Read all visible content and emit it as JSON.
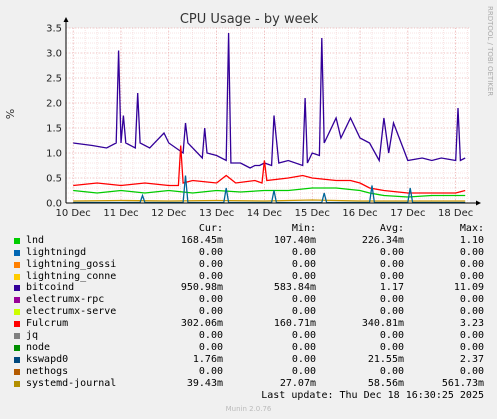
{
  "chart_data": {
    "type": "line",
    "title": "CPU Usage - by week",
    "ylabel": "%",
    "ylim": [
      0,
      3.5
    ],
    "yticks": [
      "0.0",
      "0.5",
      "1.0",
      "1.5",
      "2.0",
      "2.5",
      "3.0",
      "3.5"
    ],
    "x_categories": [
      "10 Dec",
      "11 Dec",
      "12 Dec",
      "13 Dec",
      "14 Dec",
      "15 Dec",
      "16 Dec",
      "17 Dec",
      "18 Dec"
    ],
    "x_range_days": [
      -0.15,
      8.3
    ],
    "grid": true,
    "side_label": "RRDTOOL / TOBI OETIKER",
    "series": [
      {
        "name": "bitcoind",
        "color": "#330099",
        "x": [
          0,
          0.4,
          0.7,
          0.9,
          0.95,
          1.0,
          1.05,
          1.1,
          1.3,
          1.35,
          1.4,
          1.6,
          1.9,
          2.0,
          2.3,
          2.35,
          2.4,
          2.7,
          2.75,
          2.8,
          3.0,
          3.2,
          3.25,
          3.3,
          3.5,
          3.6,
          3.7,
          3.8,
          3.9,
          4.0,
          4.15,
          4.2,
          4.3,
          4.5,
          4.8,
          4.85,
          4.9,
          5.0,
          5.15,
          5.2,
          5.25,
          5.5,
          5.6,
          5.8,
          6.0,
          6.2,
          6.4,
          6.5,
          6.6,
          6.7,
          6.9,
          7.0,
          7.3,
          7.5,
          7.7,
          8.0,
          8.05,
          8.1,
          8.2
        ],
        "y": [
          1.2,
          1.15,
          1.1,
          1.2,
          3.05,
          1.2,
          1.75,
          1.2,
          1.1,
          2.2,
          1.2,
          1.1,
          1.4,
          1.2,
          1.0,
          1.6,
          1.2,
          0.9,
          1.5,
          1.0,
          0.95,
          0.85,
          3.4,
          0.8,
          0.8,
          0.75,
          0.7,
          0.75,
          0.75,
          0.8,
          0.75,
          1.75,
          0.8,
          0.85,
          0.75,
          2.1,
          0.8,
          1.0,
          0.95,
          3.3,
          1.2,
          1.7,
          1.3,
          1.7,
          1.3,
          1.2,
          0.85,
          1.7,
          1.0,
          1.6,
          1.1,
          0.85,
          0.9,
          0.85,
          0.9,
          0.85,
          1.9,
          0.85,
          0.9
        ]
      },
      {
        "name": "Fulcrum",
        "color": "#ff0000",
        "x": [
          0,
          0.5,
          1.0,
          1.5,
          2.0,
          2.2,
          2.25,
          2.3,
          2.5,
          3.0,
          3.2,
          3.4,
          3.8,
          3.95,
          4.0,
          4.05,
          4.5,
          4.8,
          5.0,
          5.5,
          5.8,
          6.0,
          6.2,
          6.5,
          7.0,
          7.5,
          8.0,
          8.2
        ],
        "y": [
          0.35,
          0.4,
          0.35,
          0.4,
          0.35,
          0.35,
          1.15,
          0.4,
          0.45,
          0.4,
          0.55,
          0.4,
          0.45,
          0.4,
          0.85,
          0.45,
          0.5,
          0.55,
          0.5,
          0.45,
          0.45,
          0.4,
          0.3,
          0.25,
          0.2,
          0.2,
          0.2,
          0.25
        ]
      },
      {
        "name": "lnd",
        "color": "#00cc00",
        "x": [
          0,
          0.5,
          1.0,
          1.5,
          2.0,
          2.5,
          3.0,
          3.5,
          4.0,
          4.5,
          5.0,
          5.5,
          6.0,
          6.2,
          6.5,
          7.0,
          7.5,
          8.0,
          8.2
        ],
        "y": [
          0.25,
          0.2,
          0.25,
          0.2,
          0.25,
          0.2,
          0.25,
          0.22,
          0.25,
          0.25,
          0.3,
          0.3,
          0.25,
          0.2,
          0.15,
          0.12,
          0.15,
          0.15,
          0.15
        ]
      },
      {
        "name": "systemd-journal",
        "color": "#cc9900",
        "x": [
          0,
          1.0,
          2.0,
          3.0,
          4.0,
          5.0,
          6.0,
          7.0,
          8.0,
          8.2
        ],
        "y": [
          0.04,
          0.05,
          0.04,
          0.05,
          0.04,
          0.06,
          0.04,
          0.04,
          0.04,
          0.04
        ]
      },
      {
        "name": "kswapd0",
        "color": "#006699",
        "x": [
          0,
          1.4,
          1.45,
          1.5,
          2.3,
          2.35,
          2.4,
          3.15,
          3.2,
          3.25,
          4.15,
          4.2,
          4.25,
          5.2,
          5.25,
          5.3,
          6.2,
          6.25,
          6.3,
          7.0,
          7.05,
          7.1,
          8.2
        ],
        "y": [
          0.01,
          0.01,
          0.15,
          0.01,
          0.01,
          0.55,
          0.01,
          0.01,
          0.3,
          0.01,
          0.01,
          0.25,
          0.01,
          0.01,
          0.2,
          0.01,
          0.01,
          0.35,
          0.01,
          0.01,
          0.3,
          0.01,
          0.01
        ]
      }
    ]
  },
  "legend": {
    "headers": {
      "cur": "Cur:",
      "min": "Min:",
      "avg": "Avg:",
      "max": "Max:"
    },
    "rows": [
      {
        "name": "lnd",
        "color": "#00cc00",
        "cur": "168.45m",
        "min": "107.40m",
        "avg": "226.34m",
        "max": "1.10"
      },
      {
        "name": "lightningd",
        "color": "#0066b3",
        "cur": "0.00",
        "min": "0.00",
        "avg": "0.00",
        "max": "0.00"
      },
      {
        "name": "lightning_gossi",
        "color": "#ff8000",
        "cur": "0.00",
        "min": "0.00",
        "avg": "0.00",
        "max": "0.00"
      },
      {
        "name": "lightning_conne",
        "color": "#ffcc00",
        "cur": "0.00",
        "min": "0.00",
        "avg": "0.00",
        "max": "0.00"
      },
      {
        "name": "bitcoind",
        "color": "#330099",
        "cur": "950.98m",
        "min": "583.84m",
        "avg": "1.17",
        "max": "11.09"
      },
      {
        "name": "electrumx-rpc",
        "color": "#990099",
        "cur": "0.00",
        "min": "0.00",
        "avg": "0.00",
        "max": "0.00"
      },
      {
        "name": "electrumx-serve",
        "color": "#ccff00",
        "cur": "0.00",
        "min": "0.00",
        "avg": "0.00",
        "max": "0.00"
      },
      {
        "name": "Fulcrum",
        "color": "#ff0000",
        "cur": "302.06m",
        "min": "160.71m",
        "avg": "340.81m",
        "max": "3.23"
      },
      {
        "name": "jq",
        "color": "#808080",
        "cur": "0.00",
        "min": "0.00",
        "avg": "0.00",
        "max": "0.00"
      },
      {
        "name": "node",
        "color": "#008f00",
        "cur": "0.00",
        "min": "0.00",
        "avg": "0.00",
        "max": "0.00"
      },
      {
        "name": "kswapd0",
        "color": "#00487d",
        "cur": "1.76m",
        "min": "0.00",
        "avg": "21.55m",
        "max": "2.37"
      },
      {
        "name": "nethogs",
        "color": "#b35a00",
        "cur": "0.00",
        "min": "0.00",
        "avg": "0.00",
        "max": "0.00"
      },
      {
        "name": "systemd-journal",
        "color": "#b38f00",
        "cur": "39.43m",
        "min": "27.07m",
        "avg": "58.56m",
        "max": "561.73m"
      }
    ]
  },
  "footer": {
    "last_update": "Last update: Thu Dec 18 16:30:25 2025",
    "version": "Munin 2.0.76"
  }
}
